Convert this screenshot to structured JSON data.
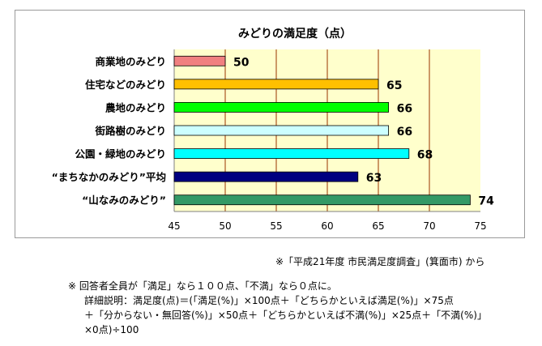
{
  "chart_data": {
    "type": "bar",
    "orientation": "horizontal",
    "title": "みどりの満足度（点）",
    "categories": [
      "商業地のみどり",
      "住宅などのみどり",
      "農地のみどり",
      "街路樹のみどり",
      "公園・緑地のみどり",
      "“まちなかのみどり”平均",
      "“山なみのみどり”"
    ],
    "values": [
      50,
      65,
      66,
      66,
      68,
      63,
      74
    ],
    "value_labels": [
      "50",
      "65",
      "66",
      "66",
      "68",
      "63",
      "74"
    ],
    "bar_colors": [
      "#f08080",
      "#ffc000",
      "#00ff00",
      "#ccffff",
      "#00ffff",
      "#000080",
      "#339966"
    ],
    "xlim": [
      45,
      75
    ],
    "ticks": [
      "45",
      "50",
      "55",
      "60",
      "65",
      "70",
      "75"
    ],
    "gridlines": true,
    "plot_background": "#ffffcc",
    "gridline_color": "#993300"
  },
  "source_note": "※「平成21年度 市民満足度調査」(箕面市) から",
  "notes": [
    "※ 回答者全員が「満足」なら１００点、「不満」なら０点に。",
    "詳細説明：満足度(点)＝(「満足(%)」×100点＋「どちらかといえば満足(%)」×75点",
    "＋「分からない・無回答(%)」×50点＋「どちらかといえば不満(%)」×25点＋「不満(%)」",
    "×0点)÷100"
  ]
}
